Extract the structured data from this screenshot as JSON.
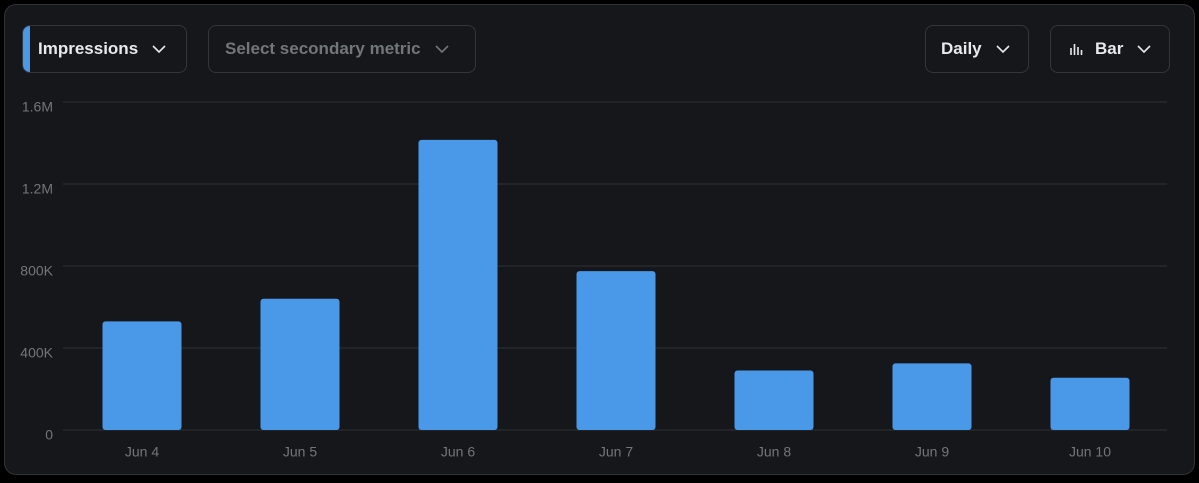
{
  "controls": {
    "primary_metric": "Impressions",
    "secondary_metric": "Select secondary metric",
    "interval": "Daily",
    "chart_type": "Bar"
  },
  "chart_data": {
    "type": "bar",
    "categories": [
      "Jun 4",
      "Jun 5",
      "Jun 6",
      "Jun 7",
      "Jun 8",
      "Jun 9",
      "Jun 10"
    ],
    "values": [
      530000,
      640000,
      1415000,
      775000,
      290000,
      325000,
      255000
    ],
    "color": "#4a99e9",
    "ylim": [
      0,
      1600000
    ],
    "yticks": [
      0,
      {
        "value": 400000,
        "label": "400K"
      },
      {
        "value": 800000,
        "label": "800K"
      },
      {
        "value": 1200000,
        "label": "1.2M"
      },
      {
        "value": 1600000,
        "label": "1.6M"
      }
    ],
    "grid": true
  }
}
